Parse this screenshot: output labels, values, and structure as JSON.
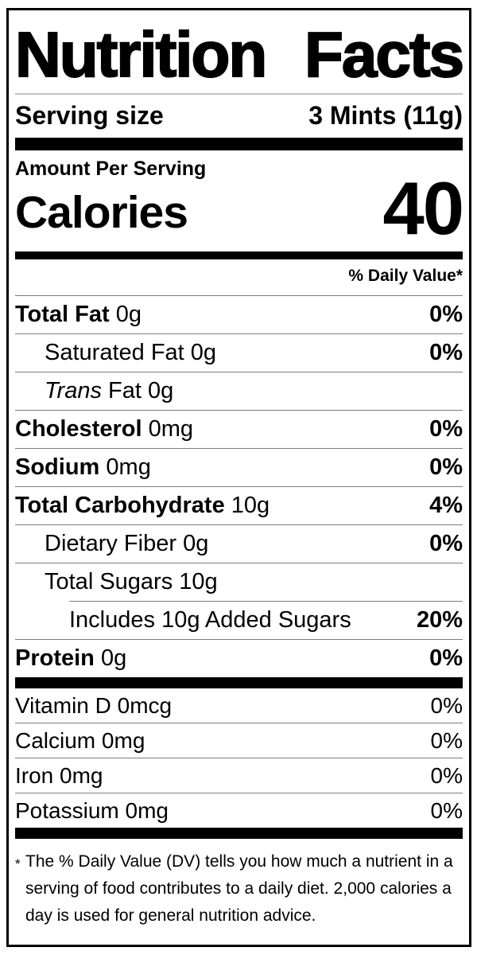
{
  "label": {
    "title": {
      "left": "Nutrition",
      "right": "Facts"
    },
    "serving": {
      "name": "Serving size",
      "value": "3 Mints (11g)"
    },
    "amount_per_serving": "Amount Per Serving",
    "calories": {
      "name": "Calories",
      "value": "40"
    },
    "daily_value_header": "% Daily Value*",
    "nutrients": [
      {
        "name": "Total Fat",
        "amount": "0g",
        "dv": "0%"
      },
      {
        "name": "Saturated Fat",
        "amount": "0g",
        "dv": "0%"
      },
      {
        "name_italic": "Trans",
        "name": "Fat",
        "amount": "0g",
        "dv": ""
      },
      {
        "name": "Cholesterol",
        "amount": "0mg",
        "dv": "0%"
      },
      {
        "name": "Sodium",
        "amount": "0mg",
        "dv": "0%"
      },
      {
        "name": "Total Carbohydrate",
        "amount": "10g",
        "dv": "4%"
      },
      {
        "name": "Dietary Fiber",
        "amount": "0g",
        "dv": "0%"
      },
      {
        "name": "Total Sugars",
        "amount": "10g",
        "dv": ""
      },
      {
        "name": "Includes 10g Added Sugars",
        "amount": "",
        "dv": "20%"
      },
      {
        "name": "Protein",
        "amount": "0g",
        "dv": "0%"
      }
    ],
    "micronutrients": [
      {
        "name": "Vitamin D",
        "amount": "0mcg",
        "dv": "0%"
      },
      {
        "name": "Calcium",
        "amount": "0mg",
        "dv": "0%"
      },
      {
        "name": "Iron",
        "amount": "0mg",
        "dv": "0%"
      },
      {
        "name": "Potassium",
        "amount": "0mg",
        "dv": "0%"
      }
    ],
    "footnote": {
      "star": "*",
      "text": "The % Daily Value (DV) tells you how much a nutrient in a serving of food contributes to a daily diet. 2,000 calories a day is used for general nutrition advice."
    },
    "colors": {
      "ink": "#000000",
      "divider": "#7d7d7d"
    }
  }
}
